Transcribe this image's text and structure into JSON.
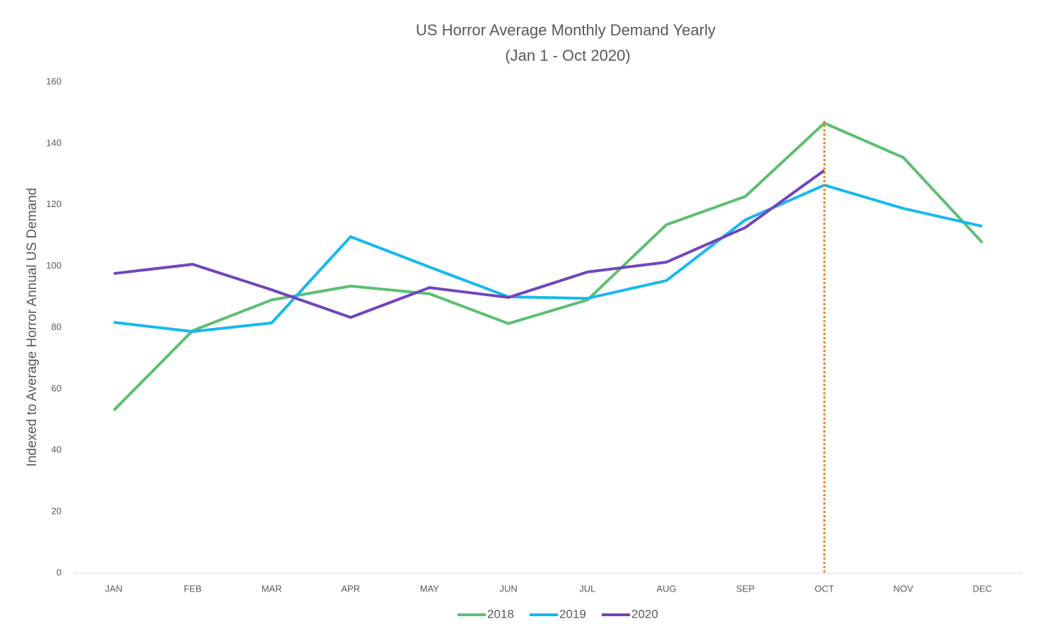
{
  "chart_data": {
    "type": "line",
    "title": "US Horror  Average Monthly Demand Yearly",
    "subtitle": "(Jan 1 - Oct 2020)",
    "y_label": "Indexed to Average  Horror Annual US Demand",
    "categories": [
      "JAN",
      "FEB",
      "MAR",
      "APR",
      "MAY",
      "JUN",
      "JUL",
      "AUG",
      "SEP",
      "OCT",
      "NOV",
      "DEC"
    ],
    "series": [
      {
        "name": "2018",
        "color": "#5cbf72",
        "values": [
          53,
          79,
          89,
          93.5,
          91,
          81.3,
          89,
          113.5,
          122.7,
          146.6,
          135.4,
          107.7
        ]
      },
      {
        "name": "2019",
        "color": "#16b8ef",
        "values": [
          81.7,
          78.7,
          81.5,
          109.6,
          99.7,
          90,
          89.5,
          95.3,
          115.1,
          126.4,
          118.8,
          113
        ]
      },
      {
        "name": "2020",
        "color": "#7145bd",
        "values": [
          97.6,
          100.6,
          92.3,
          83.3,
          93,
          89.8,
          98.1,
          101.3,
          112.6,
          131.2,
          null,
          null
        ]
      }
    ],
    "ylim": [
      0,
      160
    ],
    "yticks": [
      0,
      20,
      40,
      60,
      80,
      100,
      120,
      140,
      160
    ],
    "grid": false,
    "legend": "bottom",
    "reference_line": {
      "x": "OCT",
      "color": "#ed7d31"
    }
  }
}
